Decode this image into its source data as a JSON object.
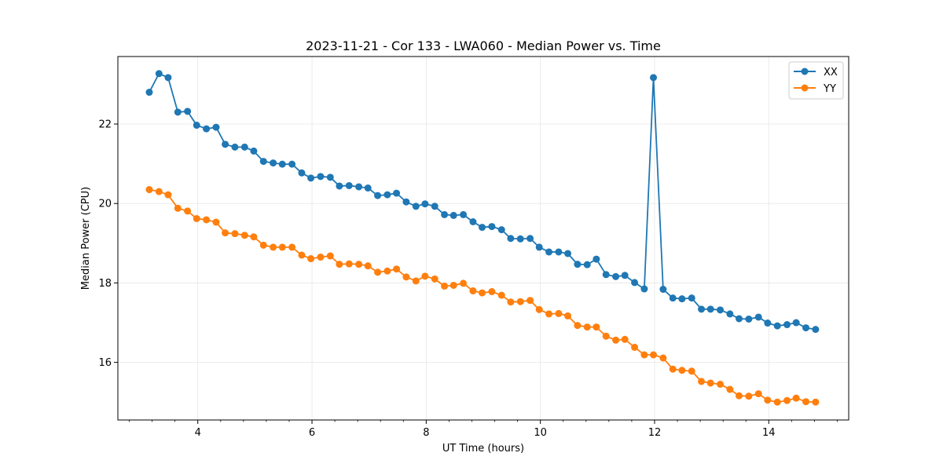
{
  "chart_data": {
    "type": "line",
    "title": "2023-11-21 - Cor 133 - LWA060 - Median Power vs. Time",
    "xlabel": "UT Time (hours)",
    "ylabel": "Median Power (CPU)",
    "xlim": [
      2.6,
      15.4
    ],
    "ylim": [
      14.55,
      23.7
    ],
    "xticks": [
      4,
      6,
      8,
      10,
      12,
      14
    ],
    "xtick_labels": [
      "4",
      "6",
      "8",
      "10",
      "12",
      "14"
    ],
    "xminor_step": 0.4,
    "yticks": [
      16,
      18,
      20,
      22
    ],
    "ytick_labels": [
      "16",
      "18",
      "20",
      "22"
    ],
    "grid": true,
    "legend_position": "top-right",
    "series": [
      {
        "name": "XX",
        "color": "#1f77b4",
        "x": [
          3.15,
          3.32,
          3.48,
          3.65,
          3.82,
          3.98,
          4.15,
          4.32,
          4.48,
          4.65,
          4.82,
          4.98,
          5.15,
          5.32,
          5.48,
          5.65,
          5.82,
          5.98,
          6.15,
          6.32,
          6.48,
          6.65,
          6.82,
          6.98,
          7.15,
          7.32,
          7.48,
          7.65,
          7.82,
          7.98,
          8.15,
          8.32,
          8.48,
          8.65,
          8.82,
          8.98,
          9.15,
          9.32,
          9.48,
          9.65,
          9.82,
          9.98,
          10.15,
          10.32,
          10.48,
          10.65,
          10.82,
          10.98,
          11.15,
          11.32,
          11.48,
          11.65,
          11.82,
          11.98,
          12.15,
          12.32,
          12.48,
          12.65,
          12.82,
          12.98,
          13.15,
          13.32,
          13.48,
          13.65,
          13.82,
          13.98,
          14.15,
          14.32,
          14.48,
          14.65,
          14.82
        ],
        "values": [
          22.8,
          23.27,
          23.17,
          22.3,
          22.32,
          21.97,
          21.88,
          21.92,
          21.49,
          21.42,
          21.42,
          21.32,
          21.06,
          21.02,
          20.99,
          20.99,
          20.77,
          20.64,
          20.68,
          20.66,
          20.44,
          20.45,
          20.42,
          20.39,
          20.2,
          20.22,
          20.26,
          20.04,
          19.93,
          19.99,
          19.93,
          19.72,
          19.7,
          19.72,
          19.54,
          19.4,
          19.42,
          19.34,
          19.12,
          19.11,
          19.12,
          18.9,
          18.78,
          18.78,
          18.74,
          18.47,
          18.46,
          18.6,
          18.21,
          18.16,
          18.19,
          18.01,
          17.85,
          23.17,
          17.84,
          17.62,
          17.6,
          17.62,
          17.34,
          17.34,
          17.32,
          17.22,
          17.1,
          17.09,
          17.14,
          16.99,
          16.92,
          16.95,
          17.0,
          16.87,
          16.83
        ]
      },
      {
        "name": "YY",
        "color": "#ff7f0e",
        "x": [
          3.15,
          3.32,
          3.48,
          3.65,
          3.82,
          3.98,
          4.15,
          4.32,
          4.48,
          4.65,
          4.82,
          4.98,
          5.15,
          5.32,
          5.48,
          5.65,
          5.82,
          5.98,
          6.15,
          6.32,
          6.48,
          6.65,
          6.82,
          6.98,
          7.15,
          7.32,
          7.48,
          7.65,
          7.82,
          7.98,
          8.15,
          8.32,
          8.48,
          8.65,
          8.82,
          8.98,
          9.15,
          9.32,
          9.48,
          9.65,
          9.82,
          9.98,
          10.15,
          10.32,
          10.48,
          10.65,
          10.82,
          10.98,
          11.15,
          11.32,
          11.48,
          11.65,
          11.82,
          11.98,
          12.15,
          12.32,
          12.48,
          12.65,
          12.82,
          12.98,
          13.15,
          13.32,
          13.48,
          13.65,
          13.82,
          13.98,
          14.15,
          14.32,
          14.48,
          14.65,
          14.82
        ],
        "values": [
          20.35,
          20.3,
          20.22,
          19.88,
          19.81,
          19.62,
          19.59,
          19.53,
          19.26,
          19.24,
          19.2,
          19.16,
          18.95,
          18.9,
          18.9,
          18.9,
          18.7,
          18.61,
          18.65,
          18.68,
          18.47,
          18.48,
          18.47,
          18.43,
          18.27,
          18.3,
          18.35,
          18.15,
          18.05,
          18.17,
          18.1,
          17.92,
          17.94,
          17.99,
          17.8,
          17.75,
          17.78,
          17.69,
          17.52,
          17.53,
          17.56,
          17.33,
          17.22,
          17.23,
          17.17,
          16.93,
          16.89,
          16.89,
          16.66,
          16.56,
          16.58,
          16.38,
          16.19,
          16.19,
          16.11,
          15.83,
          15.8,
          15.78,
          15.52,
          15.48,
          15.45,
          15.32,
          15.16,
          15.15,
          15.21,
          15.05,
          15.0,
          15.04,
          15.1,
          15.01,
          15.0
        ]
      }
    ]
  }
}
